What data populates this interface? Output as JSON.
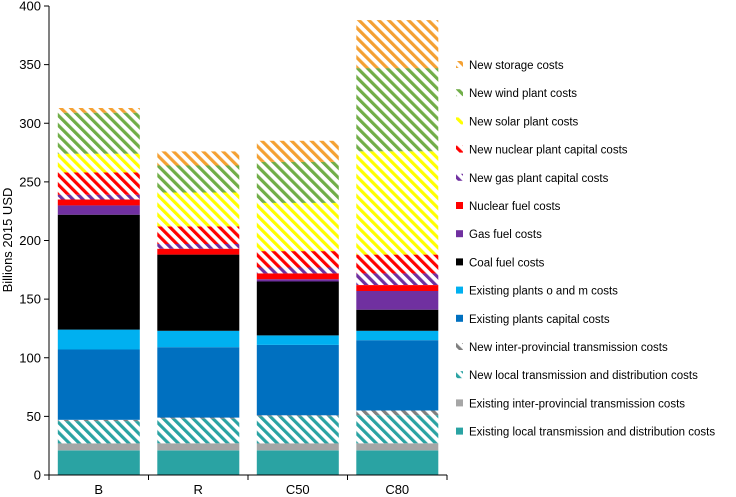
{
  "chart_data": {
    "type": "bar",
    "stacked": true,
    "categories": [
      "B",
      "R",
      "C50",
      "C80"
    ],
    "ylabel": "Billions 2015 USD",
    "xlabel": "",
    "ylim": [
      0,
      400
    ],
    "yticks": [
      0,
      50,
      100,
      150,
      200,
      250,
      300,
      350,
      400
    ],
    "grid": false,
    "legend_position": "right",
    "series": [
      {
        "name": "Existing local transmission and distribution costs",
        "color": "#2aa3a3",
        "pattern": "solid",
        "values": [
          21,
          21,
          21,
          21
        ]
      },
      {
        "name": "Existing inter-provincial transmission costs",
        "color": "#a6a6a6",
        "pattern": "solid",
        "values": [
          6,
          6,
          6,
          6
        ]
      },
      {
        "name": "New local transmission and distribution costs",
        "color": "#2aa3a3",
        "pattern": "hatched",
        "values": [
          19,
          21,
          23,
          24
        ]
      },
      {
        "name": "New inter-provincial transmission costs",
        "color": "#7f7f7f",
        "pattern": "hatched",
        "values": [
          1,
          1,
          1,
          4
        ]
      },
      {
        "name": "Existing plants capital costs",
        "color": "#0070c0",
        "pattern": "solid",
        "values": [
          60,
          60,
          60,
          60
        ]
      },
      {
        "name": "Existing plants o and m costs",
        "color": "#00b0f0",
        "pattern": "solid",
        "values": [
          17,
          14,
          8,
          8
        ]
      },
      {
        "name": "Coal fuel costs",
        "color": "#000000",
        "pattern": "solid",
        "values": [
          98,
          65,
          46,
          18
        ]
      },
      {
        "name": "Gas fuel costs",
        "color": "#7030a0",
        "pattern": "solid",
        "values": [
          8,
          0,
          2,
          16
        ]
      },
      {
        "name": "Nuclear fuel costs",
        "color": "#ff0000",
        "pattern": "solid",
        "values": [
          5,
          5,
          5,
          5
        ]
      },
      {
        "name": "New gas plant capital costs",
        "color": "#7030a0",
        "pattern": "hatched",
        "values": [
          4,
          4,
          5,
          10
        ]
      },
      {
        "name": "New nuclear plant capital costs",
        "color": "#ff0000",
        "pattern": "hatched",
        "values": [
          19,
          15,
          14,
          16
        ]
      },
      {
        "name": "New solar plant costs",
        "color": "#ffff00",
        "pattern": "hatched",
        "values": [
          16,
          29,
          41,
          88
        ]
      },
      {
        "name": "New wind plant costs",
        "color": "#70ad47",
        "pattern": "hatched",
        "values": [
          35,
          23,
          35,
          71
        ]
      },
      {
        "name": "New storage costs",
        "color": "#f4a032",
        "pattern": "hatched",
        "values": [
          4,
          12,
          18,
          41
        ]
      }
    ],
    "legend_order": [
      "New storage costs",
      "New wind plant costs",
      "New solar plant costs",
      "New nuclear plant capital costs",
      "New gas plant capital costs",
      "Nuclear fuel costs",
      "Gas fuel costs",
      "Coal fuel costs",
      "Existing plants o and m costs",
      "Existing plants capital costs",
      "New inter-provincial transmission costs",
      "New local transmission and distribution costs",
      "Existing inter-provincial transmission costs",
      "Existing local transmission and distribution costs"
    ]
  }
}
